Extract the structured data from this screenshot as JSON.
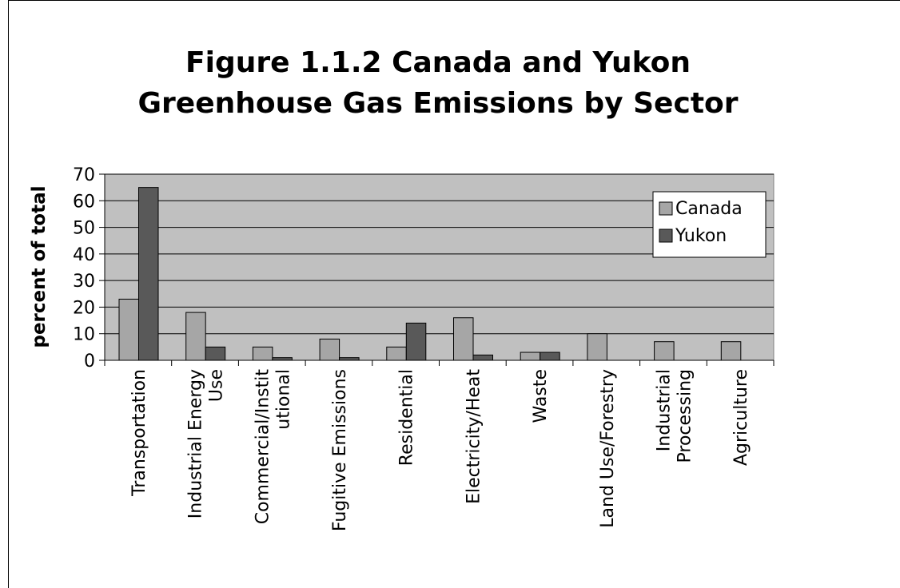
{
  "chart_data": {
    "type": "bar",
    "title": [
      "Figure 1.1.2  Canada and Yukon",
      "Greenhouse Gas Emissions by Sector"
    ],
    "y_label": "percent of total",
    "categories": [
      "Transportation",
      "Industrial Energy\nUse",
      "Commercial/Instit\nutional",
      "Fugitive Emissions",
      "Residential",
      "Electricity/Heat",
      "Waste",
      "Land Use/Forestry",
      "Industrial\nProcessing",
      "Agriculture"
    ],
    "series": [
      {
        "name": "Canada",
        "color": "#a6a6a6",
        "values": [
          23,
          18,
          5,
          8,
          5,
          16,
          3,
          10,
          7,
          7
        ]
      },
      {
        "name": "Yukon",
        "color": "#595959",
        "values": [
          65,
          5,
          1,
          1,
          14,
          2,
          3,
          null,
          null,
          null
        ]
      }
    ],
    "ylim": [
      0,
      70
    ],
    "yticks": [
      0,
      10,
      20,
      30,
      40,
      50,
      60,
      70
    ],
    "grid": true,
    "plot_background": "#c0c0c0",
    "legend": "upper right"
  }
}
